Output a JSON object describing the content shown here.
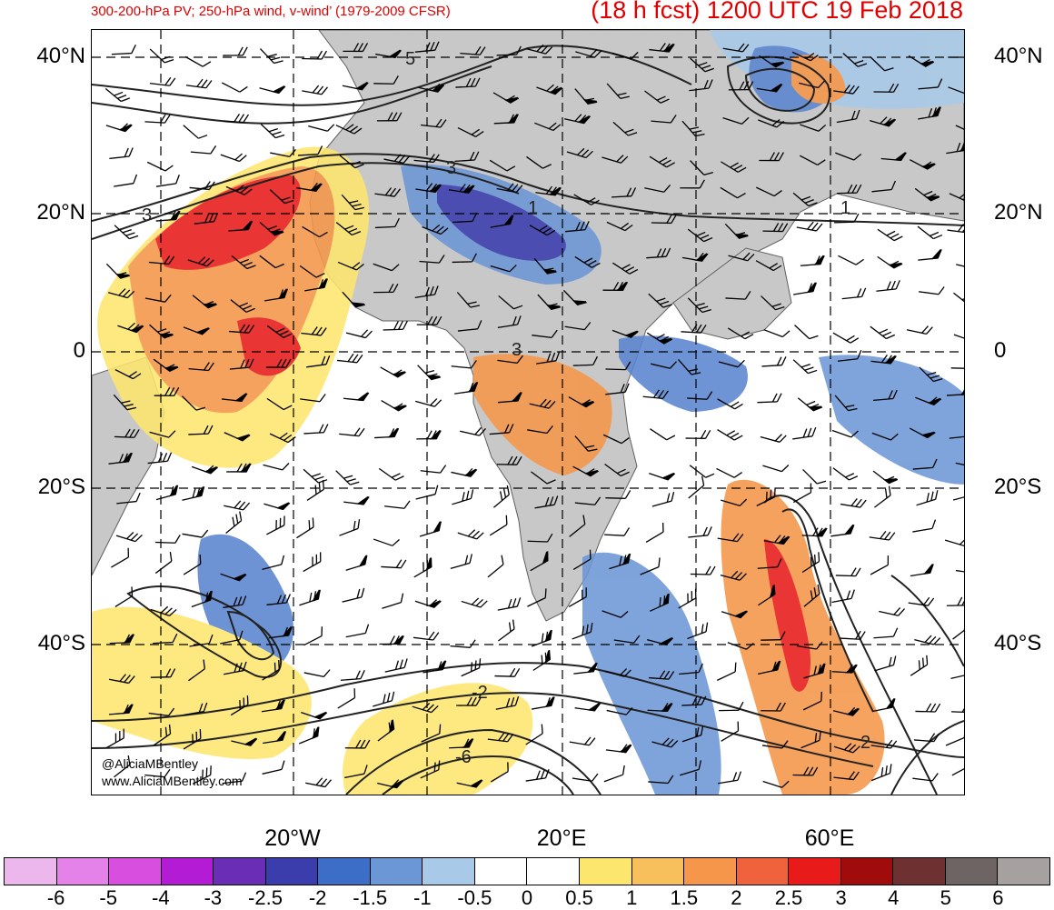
{
  "header": {
    "left_title": "300-200-hPa PV; 250-hPa wind, v-wind’ (1979-2009 CFSR)",
    "right_title": "(18 h fcst) 1200 UTC 19 Feb 2018"
  },
  "map": {
    "lat_labels": [
      "40°N",
      "20°N",
      "0",
      "20°S",
      "40°S"
    ],
    "lon_labels": [
      "20°W",
      "20°E",
      "60°E"
    ],
    "contour_labels": [
      "5",
      "3",
      "3",
      "1",
      "1",
      "3",
      "-2",
      "-6",
      "2"
    ],
    "fill_colors": {
      "positive_strong": "#e81a1a",
      "positive_mid": "#f07a3c",
      "positive_weak": "#fde66e",
      "negative_weak": "#a8c9e8",
      "negative_mid": "#5a85cf",
      "negative_strong": "#3a3fb5",
      "land": "#c8c8c8"
    }
  },
  "credits": {
    "handle": "@AliciaMBentley",
    "website": "www.AliciaMBentley.com"
  },
  "colorbar": {
    "colors": [
      "#ebb7ec",
      "#e582e9",
      "#d84fe0",
      "#b31bd4",
      "#6a2db6",
      "#3b3dad",
      "#3c6ec8",
      "#6c97d6",
      "#a8c9e8",
      "#ffffff",
      "#ffffff",
      "#fde66e",
      "#f7c05c",
      "#f5964a",
      "#ef623c",
      "#e81a1a",
      "#a00b0b",
      "#6e3030",
      "#6e6464",
      "#a6a0a0"
    ],
    "labels": [
      "-6",
      "-5",
      "-4",
      "-3",
      "-2.5",
      "-2",
      "-1.5",
      "-1",
      "-0.5",
      "0",
      "0.5",
      "1",
      "1.5",
      "2",
      "2.5",
      "3",
      "4",
      "5",
      "6"
    ]
  }
}
